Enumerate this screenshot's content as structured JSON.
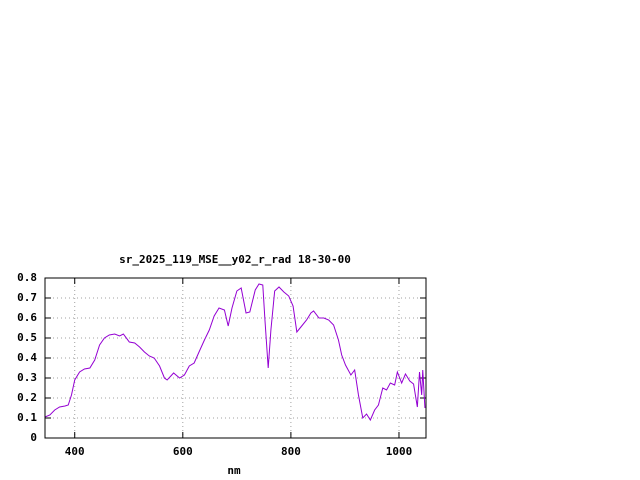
{
  "chart_data": {
    "type": "line",
    "title": "sr_2025_119_MSE__y02_r_rad 18-30-00",
    "x_label": "nm",
    "xlim": [
      345,
      1050
    ],
    "ylim": [
      0,
      0.8
    ],
    "xticks": [
      400,
      600,
      800,
      1000
    ],
    "yticks": [
      0,
      0.1,
      0.2,
      0.3,
      0.4,
      0.5,
      0.6,
      0.7,
      0.8
    ],
    "grid": true,
    "x": [
      345,
      354,
      363,
      372,
      382,
      388,
      394,
      400,
      409,
      418,
      428,
      437,
      446,
      455,
      464,
      474,
      483,
      490,
      501,
      511,
      520,
      529,
      538,
      547,
      557,
      566,
      571,
      583,
      594,
      603,
      612,
      621,
      630,
      640,
      649,
      658,
      667,
      677,
      684,
      691,
      700,
      708,
      717,
      724,
      734,
      741,
      748,
      752,
      758,
      763,
      770,
      778,
      787,
      796,
      804,
      811,
      820,
      829,
      837,
      842,
      852,
      861,
      870,
      879,
      888,
      894,
      901,
      911,
      918,
      925,
      933,
      940,
      947,
      955,
      962,
      970,
      977,
      984,
      992,
      997,
      1005,
      1012,
      1020,
      1027,
      1034,
      1038,
      1042,
      1044,
      1048
    ],
    "series": [
      {
        "color": "#9400d3",
        "values": [
          0.105,
          0.115,
          0.14,
          0.155,
          0.16,
          0.165,
          0.215,
          0.29,
          0.33,
          0.345,
          0.35,
          0.39,
          0.465,
          0.5,
          0.515,
          0.52,
          0.51,
          0.52,
          0.48,
          0.475,
          0.455,
          0.43,
          0.41,
          0.4,
          0.36,
          0.3,
          0.29,
          0.325,
          0.3,
          0.315,
          0.36,
          0.375,
          0.43,
          0.49,
          0.54,
          0.61,
          0.65,
          0.64,
          0.56,
          0.65,
          0.735,
          0.75,
          0.625,
          0.63,
          0.74,
          0.77,
          0.765,
          0.59,
          0.35,
          0.54,
          0.735,
          0.755,
          0.73,
          0.71,
          0.66,
          0.53,
          0.56,
          0.59,
          0.625,
          0.635,
          0.6,
          0.6,
          0.59,
          0.565,
          0.49,
          0.415,
          0.365,
          0.315,
          0.34,
          0.215,
          0.1,
          0.12,
          0.09,
          0.14,
          0.165,
          0.25,
          0.24,
          0.275,
          0.265,
          0.33,
          0.275,
          0.32,
          0.285,
          0.27,
          0.155,
          0.33,
          0.215,
          0.34,
          0.15
        ]
      }
    ]
  }
}
